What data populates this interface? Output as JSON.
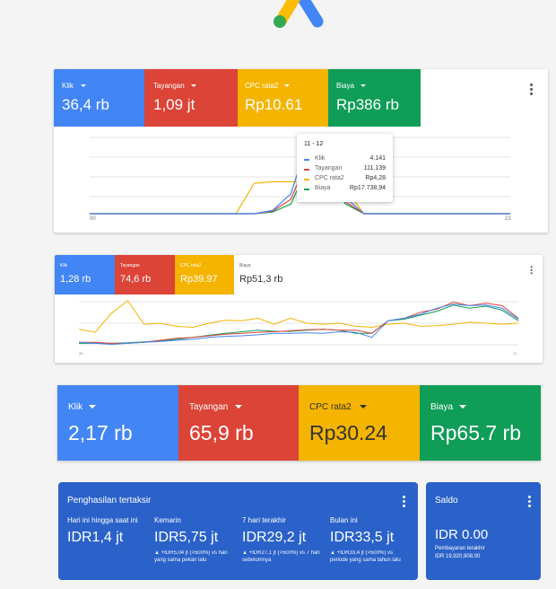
{
  "colors": {
    "blue": "#4285f4",
    "red": "#db4437",
    "yellow": "#f4b400",
    "green": "#0f9d58",
    "card_blue": "#2a62c9"
  },
  "icons": {
    "logo": "google-ads-logo",
    "menu": "more-vert-icon"
  },
  "card1": {
    "metrics": [
      {
        "label": "Klik",
        "value": "36,4 rb"
      },
      {
        "label": "Tayangan",
        "value": "1,09 jt"
      },
      {
        "label": "CPC rata2",
        "value": "Rp10.61"
      },
      {
        "label": "Biaya",
        "value": "Rp386 rb"
      }
    ],
    "x_start": "00",
    "x_end": "23",
    "tooltip": {
      "title": "11 - 12",
      "rows": [
        {
          "name": "Klik",
          "value": "4.141"
        },
        {
          "name": "Tayangan",
          "value": "111.139"
        },
        {
          "name": "CPC rata2",
          "value": "Rp4,28"
        },
        {
          "name": "Biaya",
          "value": "Rp17.738,94"
        }
      ]
    }
  },
  "card2": {
    "metrics": [
      {
        "label": "Klik",
        "value": "1,28 rb"
      },
      {
        "label": "Tayangan",
        "value": "74,6 rb"
      },
      {
        "label": "CPC rata2",
        "value": "Rp39.97"
      },
      {
        "label": "Biaya",
        "value": "Rp51,3 rb"
      }
    ],
    "x_start": "26",
    "x_end": "31"
  },
  "card3": {
    "metrics": [
      {
        "label": "Klik",
        "value": "2,17 rb"
      },
      {
        "label": "Tayangan",
        "value": "65,9 rb"
      },
      {
        "label": "CPC rata2",
        "value": "Rp30.24"
      },
      {
        "label": "Biaya",
        "value": "Rp65.7 rb"
      }
    ]
  },
  "earnings": {
    "title": "Penghasilan tertaksir",
    "columns": [
      {
        "label": "Hari ini hingga saat ini",
        "value": "IDR1,4 jt",
        "sub": ""
      },
      {
        "label": "Kemarin",
        "value": "IDR5,75 jt",
        "sub": "▲ +IDR5,04 jt (>500%) vs hari yang sama pekan lalu"
      },
      {
        "label": "7 hari terakhir",
        "value": "IDR29,2 jt",
        "sub": "▲ +IDR27,1 jt (>500%) vs 7 hari sebelumnya"
      },
      {
        "label": "Bulan ini",
        "value": "IDR33,5 jt",
        "sub": "▲ +IDR33,4 jt (>500%) vs periode yang sama tahun lalu"
      }
    ]
  },
  "saldo": {
    "title": "Saldo",
    "value": "IDR 0.00",
    "last_payment_label": "Pembayaran terakhir",
    "last_payment_value": "IDR 19,920,908.00"
  },
  "chart_data": [
    {
      "type": "line",
      "x": [
        0,
        1,
        2,
        3,
        4,
        5,
        6,
        7,
        8,
        9,
        10,
        11,
        12,
        13,
        14,
        15,
        16,
        17,
        18,
        19,
        20,
        21,
        22,
        23
      ],
      "series": [
        {
          "name": "Klik",
          "values": [
            0,
            0,
            0,
            0,
            0,
            0,
            0,
            0,
            0,
            0,
            0.04,
            0.25,
            0.95,
            0.6,
            0.2,
            0,
            0,
            0,
            0,
            0,
            0,
            0,
            0,
            0
          ]
        },
        {
          "name": "Tayangan",
          "values": [
            0,
            0,
            0,
            0,
            0,
            0,
            0,
            0,
            0,
            0,
            0.03,
            0.18,
            0.72,
            0.5,
            0.15,
            0,
            0,
            0,
            0,
            0,
            0,
            0,
            0,
            0
          ]
        },
        {
          "name": "CPC rata2",
          "values": [
            0,
            0,
            0,
            0,
            0,
            0,
            0,
            0,
            0,
            0.38,
            0.4,
            0.4,
            0.38,
            0.46,
            0.3,
            0,
            0,
            0,
            0,
            0,
            0,
            0,
            0,
            0
          ]
        },
        {
          "name": "Biaya",
          "values": [
            0,
            0,
            0,
            0,
            0,
            0,
            0,
            0,
            0,
            0,
            0.02,
            0.12,
            0.62,
            0.42,
            0.12,
            0,
            0,
            0,
            0,
            0,
            0,
            0,
            0,
            0
          ]
        }
      ]
    },
    {
      "type": "line",
      "x": [
        1,
        2,
        3,
        4,
        5,
        6,
        7,
        8,
        9,
        10,
        11,
        12,
        13,
        14,
        15,
        16,
        17,
        18,
        19,
        20,
        21,
        22,
        23,
        24,
        25,
        26,
        27,
        28
      ],
      "series": [
        {
          "name": "Klik",
          "values": [
            0.12,
            0.1,
            0.08,
            0.1,
            0.12,
            0.14,
            0.16,
            0.18,
            0.22,
            0.24,
            0.25,
            0.27,
            0.3,
            0.3,
            0.31,
            0.3,
            0.33,
            0.32,
            0.22,
            0.55,
            0.6,
            0.68,
            0.8,
            0.88,
            0.85,
            0.86,
            0.8,
            0.58
          ]
        },
        {
          "name": "Tayangan",
          "values": [
            0.12,
            0.12,
            0.1,
            0.1,
            0.12,
            0.16,
            0.2,
            0.22,
            0.25,
            0.28,
            0.3,
            0.32,
            0.33,
            0.35,
            0.37,
            0.38,
            0.36,
            0.36,
            0.3,
            0.55,
            0.6,
            0.72,
            0.78,
            0.92,
            0.85,
            0.9,
            0.85,
            0.6
          ]
        },
        {
          "name": "CPC rata2",
          "values": [
            0.38,
            0.32,
            0.7,
            0.95,
            0.48,
            0.5,
            0.44,
            0.42,
            0.5,
            0.56,
            0.55,
            0.6,
            0.48,
            0.6,
            0.5,
            0.48,
            0.5,
            0.44,
            0.42,
            0.48,
            0.5,
            0.44,
            0.45,
            0.48,
            0.52,
            0.5,
            0.48,
            0.5
          ]
        },
        {
          "name": "Biaya",
          "values": [
            0.1,
            0.1,
            0.1,
            0.11,
            0.13,
            0.15,
            0.18,
            0.22,
            0.26,
            0.3,
            0.33,
            0.36,
            0.34,
            0.34,
            0.36,
            0.38,
            0.36,
            0.3,
            0.3,
            0.55,
            0.58,
            0.66,
            0.74,
            0.86,
            0.8,
            0.84,
            0.76,
            0.55
          ]
        }
      ]
    }
  ]
}
